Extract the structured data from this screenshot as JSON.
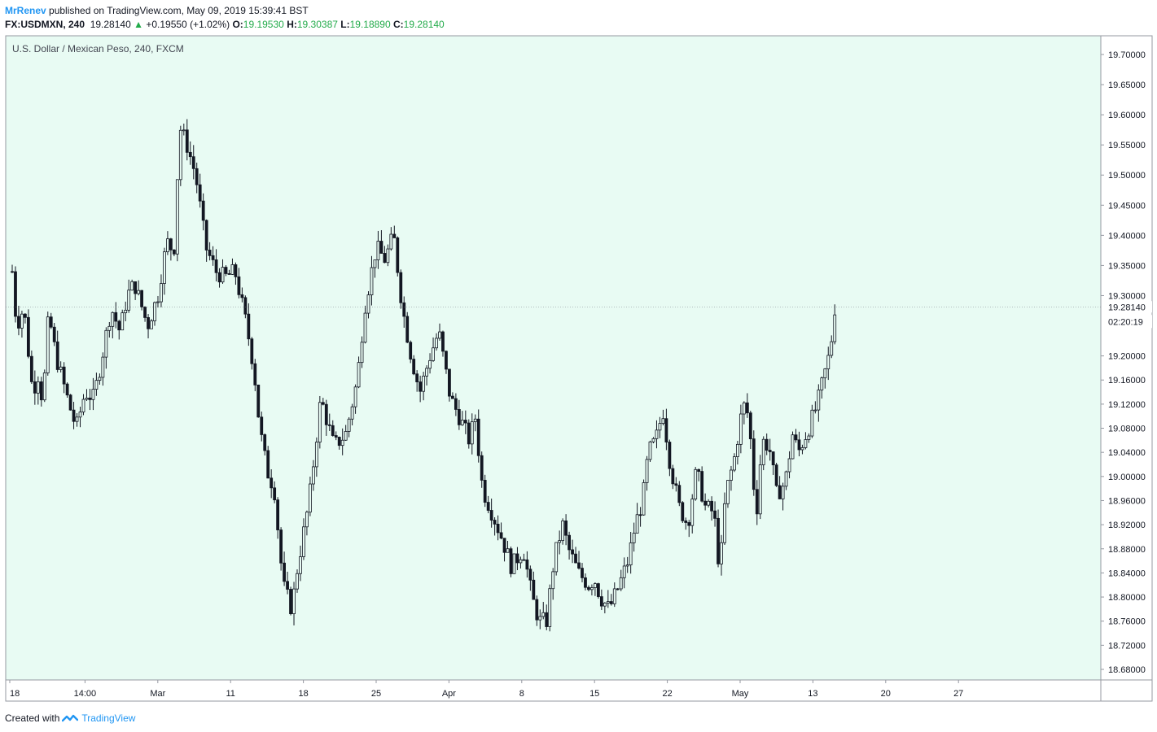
{
  "header": {
    "author": "MrRenev",
    "published_text": "published on TradingView.com, May 09, 2019 15:39:41 BST"
  },
  "quote": {
    "symbol": "FX:USDMXN, 240",
    "last": "19.28140",
    "change": "+0.19550 (+1.02%)",
    "open_label": "O:",
    "open": "19.19530",
    "high_label": "H:",
    "high": "19.30387",
    "low_label": "L:",
    "low": "19.18890",
    "close_label": "C:",
    "close": "19.28140"
  },
  "footer": {
    "created_with": "Created with",
    "brand": "TradingView"
  },
  "colors": {
    "background": "#e8fbf3",
    "candle": "#131722",
    "brand": "#2196f3",
    "up": "#22ab4a"
  },
  "chart_data": {
    "type": "candlestick",
    "title": "U.S. Dollar / Mexican Peso, 240, FXCM",
    "ylim": [
      18.65,
      19.725
    ],
    "y_ticks": [
      "19.70000",
      "19.65000",
      "19.60000",
      "19.55000",
      "19.50000",
      "19.45000",
      "19.40000",
      "19.35000",
      "19.30000",
      "19.20000",
      "19.16000",
      "19.12000",
      "19.08000",
      "19.04000",
      "19.00000",
      "18.96000",
      "18.92000",
      "18.88000",
      "18.84000",
      "18.80000",
      "18.76000",
      "18.72000",
      "18.68000"
    ],
    "y_tick_values": [
      19.7,
      19.65,
      19.6,
      19.55,
      19.5,
      19.45,
      19.4,
      19.35,
      19.3,
      19.2,
      19.16,
      19.12,
      19.08,
      19.04,
      19.0,
      18.96,
      18.92,
      18.88,
      18.84,
      18.8,
      18.76,
      18.72,
      18.68
    ],
    "x_ticks": [
      "18",
      "14:00",
      "Mar",
      "11",
      "18",
      "25",
      "Apr",
      "8",
      "15",
      "22",
      "May",
      "13",
      "20",
      "27"
    ],
    "x_tick_positions": [
      0,
      1,
      2,
      3,
      4,
      5,
      6,
      7,
      8,
      9,
      10,
      11,
      12,
      13
    ],
    "last_price_label": "19.28140",
    "countdown_label": "02:20:19",
    "path_points": [
      [
        0,
        19.34
      ],
      [
        0.06,
        19.25
      ],
      [
        0.16,
        19.28
      ],
      [
        0.28,
        19.14
      ],
      [
        0.36,
        19.17
      ],
      [
        0.42,
        19.12
      ],
      [
        0.5,
        19.27
      ],
      [
        0.6,
        19.2
      ],
      [
        0.78,
        19.12
      ],
      [
        0.88,
        19.08
      ],
      [
        1.0,
        19.14
      ],
      [
        1.12,
        19.13
      ],
      [
        1.22,
        19.19
      ],
      [
        1.36,
        19.28
      ],
      [
        1.48,
        19.24
      ],
      [
        1.58,
        19.3
      ],
      [
        1.68,
        19.32
      ],
      [
        1.86,
        19.25
      ],
      [
        2.0,
        19.3
      ],
      [
        2.08,
        19.36
      ],
      [
        2.14,
        19.39
      ],
      [
        2.22,
        19.37
      ],
      [
        2.3,
        19.58
      ],
      [
        2.4,
        19.55
      ],
      [
        2.52,
        19.5
      ],
      [
        2.66,
        19.38
      ],
      [
        2.8,
        19.34
      ],
      [
        2.92,
        19.33
      ],
      [
        3.06,
        19.34
      ],
      [
        3.22,
        19.25
      ],
      [
        3.32,
        19.18
      ],
      [
        3.4,
        19.08
      ],
      [
        3.5,
        19.01
      ],
      [
        3.6,
        18.98
      ],
      [
        3.72,
        18.82
      ],
      [
        3.84,
        18.78
      ],
      [
        3.92,
        18.85
      ],
      [
        4.08,
        18.96
      ],
      [
        4.24,
        19.13
      ],
      [
        4.42,
        19.05
      ],
      [
        4.58,
        19.07
      ],
      [
        4.74,
        19.16
      ],
      [
        4.84,
        19.28
      ],
      [
        5.0,
        19.38
      ],
      [
        5.12,
        19.36
      ],
      [
        5.24,
        19.4
      ],
      [
        5.36,
        19.28
      ],
      [
        5.48,
        19.2
      ],
      [
        5.6,
        19.14
      ],
      [
        5.74,
        19.2
      ],
      [
        5.86,
        19.24
      ],
      [
        6.02,
        19.13
      ],
      [
        6.14,
        19.1
      ],
      [
        6.28,
        19.06
      ],
      [
        6.36,
        19.1
      ],
      [
        6.46,
        18.98
      ],
      [
        6.56,
        18.95
      ],
      [
        6.72,
        18.9
      ],
      [
        6.86,
        18.85
      ],
      [
        7.02,
        18.88
      ],
      [
        7.14,
        18.8
      ],
      [
        7.24,
        18.76
      ],
      [
        7.34,
        18.76
      ],
      [
        7.44,
        18.86
      ],
      [
        7.56,
        18.92
      ],
      [
        7.64,
        18.88
      ],
      [
        7.78,
        18.84
      ],
      [
        7.92,
        18.82
      ],
      [
        8.0,
        18.83
      ],
      [
        8.08,
        18.8
      ],
      [
        8.2,
        18.78
      ],
      [
        8.34,
        18.82
      ],
      [
        8.46,
        18.86
      ],
      [
        8.56,
        18.92
      ],
      [
        8.66,
        18.96
      ],
      [
        8.74,
        19.04
      ],
      [
        8.84,
        19.06
      ],
      [
        8.94,
        19.11
      ],
      [
        9.04,
        19.02
      ],
      [
        9.16,
        18.95
      ],
      [
        9.28,
        18.92
      ],
      [
        9.4,
        19.01
      ],
      [
        9.52,
        18.95
      ],
      [
        9.64,
        18.94
      ],
      [
        9.72,
        18.84
      ],
      [
        9.8,
        18.97
      ],
      [
        9.92,
        19.03
      ],
      [
        10.04,
        19.12
      ],
      [
        10.12,
        19.1
      ],
      [
        10.22,
        18.93
      ],
      [
        10.3,
        19.06
      ],
      [
        10.4,
        19.05
      ],
      [
        10.5,
        18.97
      ],
      [
        10.62,
        18.99
      ],
      [
        10.72,
        19.07
      ],
      [
        10.8,
        19.04
      ],
      [
        10.94,
        19.08
      ],
      [
        11.06,
        19.12
      ],
      [
        11.16,
        19.17
      ],
      [
        11.24,
        19.21
      ],
      [
        11.3,
        19.28
      ]
    ]
  }
}
